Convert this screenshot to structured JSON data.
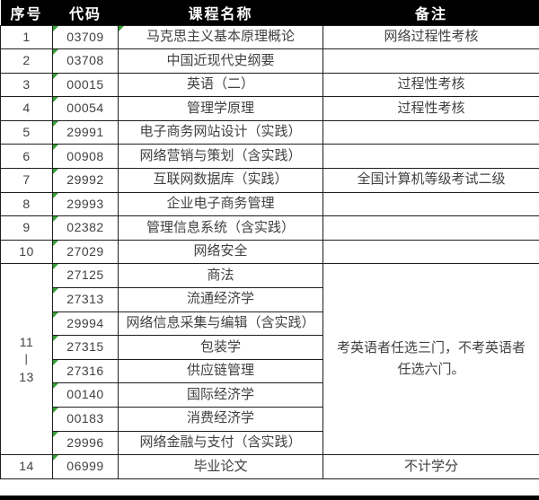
{
  "colors": {
    "accent_green": "#35a035",
    "header_bg": "#000000",
    "border": "#1e1e1e",
    "text": "#414141"
  },
  "header": {
    "col_no": "序号",
    "col_code": "代码",
    "col_course": "课程名称",
    "col_remark": "备注"
  },
  "merged": {
    "no_line1": "11",
    "no_line2": "|",
    "no_line3": "13",
    "remark": "考英语者任选三门，不考英语者任选六门。"
  },
  "rows": [
    {
      "no": "1",
      "code": "03709",
      "course": "马克思主义基本原理概论",
      "remark": "网络过程性考核"
    },
    {
      "no": "2",
      "code": "03708",
      "course": "中国近现代史纲要",
      "remark": ""
    },
    {
      "no": "3",
      "code": "00015",
      "course": "英语（二）",
      "remark": "过程性考核"
    },
    {
      "no": "4",
      "code": "00054",
      "course": "管理学原理",
      "remark": "过程性考核"
    },
    {
      "no": "5",
      "code": "29991",
      "course": "电子商务网站设计（实践）",
      "remark": ""
    },
    {
      "no": "6",
      "code": "00908",
      "course": "网络营销与策划（含实践）",
      "remark": ""
    },
    {
      "no": "7",
      "code": "29992",
      "course": "互联网数据库（实践）",
      "remark": "全国计算机等级考试二级"
    },
    {
      "no": "8",
      "code": "29993",
      "course": "企业电子商务管理",
      "remark": ""
    },
    {
      "no": "9",
      "code": "02382",
      "course": "管理信息系统（含实践）",
      "remark": ""
    },
    {
      "no": "10",
      "code": "27029",
      "course": "网络安全",
      "remark": ""
    },
    {
      "code": "27125",
      "course": "商法"
    },
    {
      "code": "27313",
      "course": "流通经济学"
    },
    {
      "code": "29994",
      "course": "网络信息采集与编辑（含实践）"
    },
    {
      "code": "27315",
      "course": "包装学"
    },
    {
      "code": "27316",
      "course": "供应链管理"
    },
    {
      "code": "00140",
      "course": "国际经济学"
    },
    {
      "code": "00183",
      "course": "消费经济学"
    },
    {
      "code": "29996",
      "course": "网络金融与支付（含实践）"
    },
    {
      "no": "14",
      "code": "06999",
      "course": "毕业论文",
      "remark": "不计学分"
    }
  ]
}
